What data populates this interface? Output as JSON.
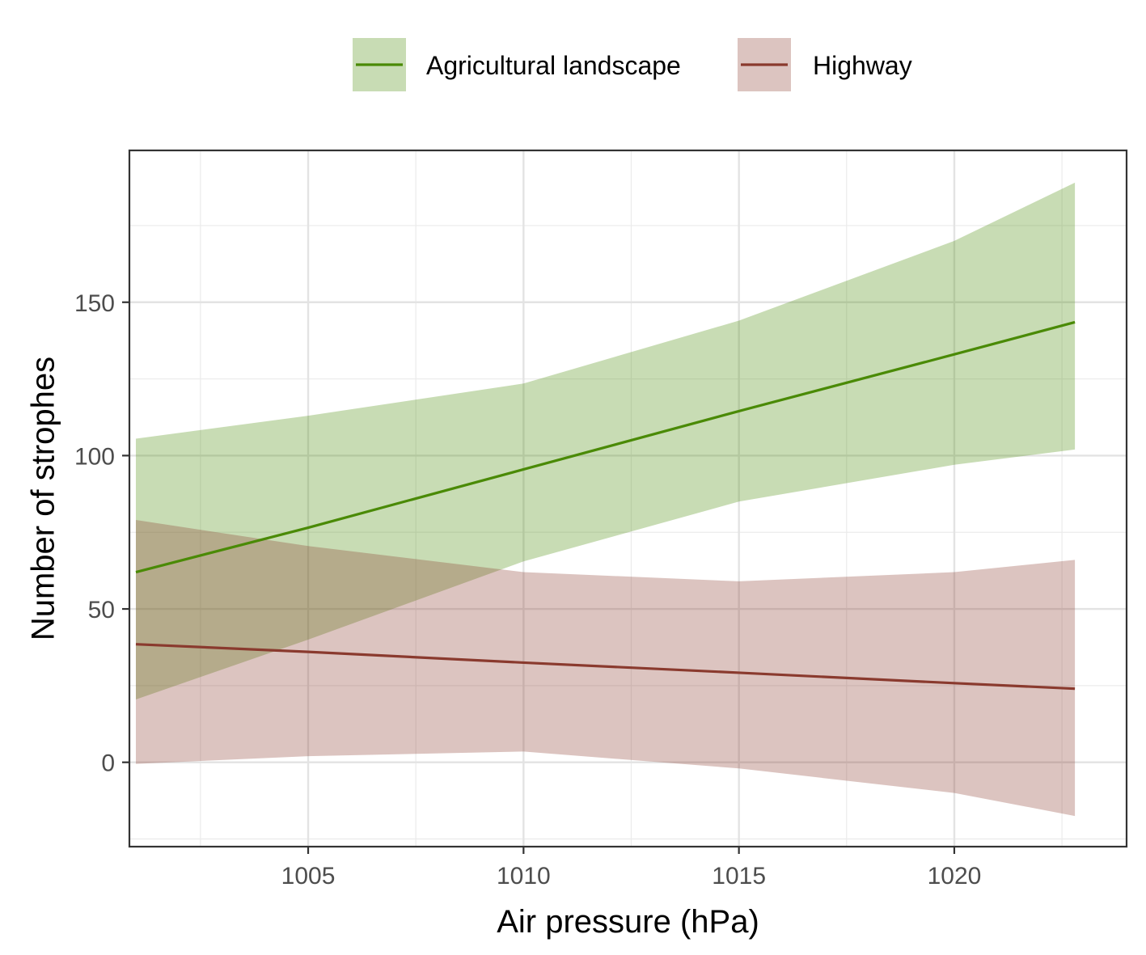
{
  "chart_data": {
    "type": "line",
    "title": "",
    "xlabel": "Air pressure (hPa)",
    "ylabel": "Number of strophes",
    "xlim": [
      1000.85,
      1024.0
    ],
    "ylim": [
      -27.5,
      199.5
    ],
    "x_ticks": [
      1005,
      1010,
      1015,
      1020
    ],
    "y_ticks": [
      0,
      50,
      100,
      150
    ],
    "x_minor_ticks": [
      1002.5,
      1007.5,
      1012.5,
      1017.5,
      1022.5
    ],
    "y_minor_ticks": [
      -25,
      25,
      75,
      125,
      175
    ],
    "grid": true,
    "legend_position": "top",
    "series": [
      {
        "name": "Agricultural landscape",
        "color": "#4a8a06",
        "fill_color": "#c8ddb3",
        "x": [
          1001.0,
          1005.0,
          1010.0,
          1015.0,
          1020.0,
          1022.8
        ],
        "values": [
          62,
          76.5,
          95.5,
          114.5,
          133,
          143.5
        ],
        "lower": [
          20.5,
          40,
          65.5,
          85,
          97,
          102
        ],
        "upper": [
          105.5,
          113,
          123.5,
          144,
          170,
          189
        ]
      },
      {
        "name": "Highway",
        "color": "#8a3a2e",
        "fill_color": "#dcc4c1",
        "x": [
          1001.0,
          1005.0,
          1010.0,
          1015.0,
          1020.0,
          1022.8
        ],
        "values": [
          38.5,
          36,
          32.5,
          29.2,
          25.8,
          24
        ],
        "lower": [
          -0.5,
          2,
          3.5,
          -2,
          -10,
          -17.5
        ],
        "upper": [
          79,
          70.5,
          62,
          59,
          62,
          66
        ]
      }
    ]
  }
}
